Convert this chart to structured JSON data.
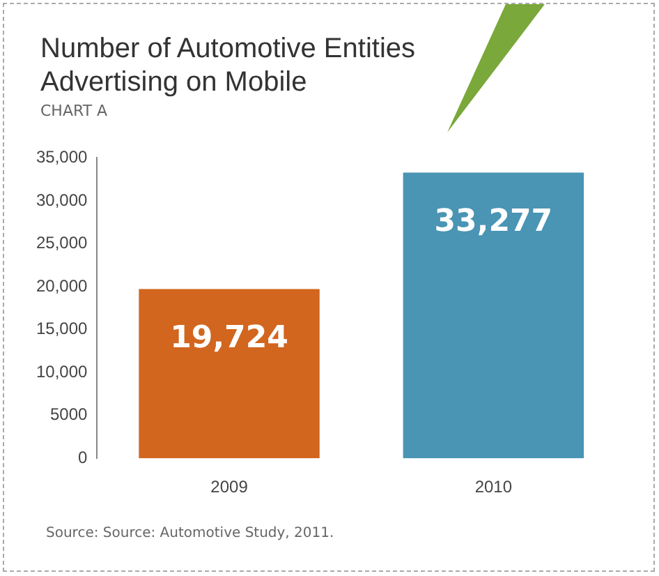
{
  "chart_data": {
    "type": "bar",
    "title": "Number of Automotive Entities Advertising on Mobile",
    "subtitle": "CHART A",
    "categories": [
      "2009",
      "2010"
    ],
    "values": [
      19724,
      33277
    ],
    "colors": [
      "#d2661e",
      "#4a94b4"
    ],
    "value_labels": [
      "19,724",
      "33,277"
    ],
    "ylim": [
      0,
      35000
    ],
    "yticks": [
      {
        "value": 0,
        "label": "0"
      },
      {
        "value": 5000,
        "label": "5000"
      },
      {
        "value": 10000,
        "label": "10,000"
      },
      {
        "value": 15000,
        "label": "15,000"
      },
      {
        "value": 20000,
        "label": "20,000"
      },
      {
        "value": 25000,
        "label": "25,000"
      },
      {
        "value": 30000,
        "label": "30,000"
      },
      {
        "value": 35000,
        "label": "35,000"
      }
    ],
    "grid": false,
    "legend": false,
    "annotations": [
      "Source: Source: Automotive Study, 2011."
    ]
  }
}
